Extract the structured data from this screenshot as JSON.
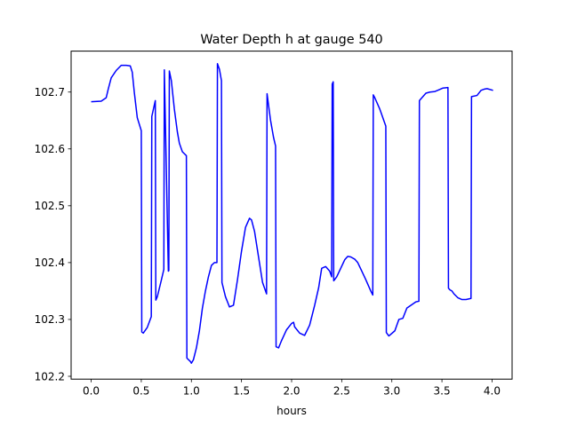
{
  "chart_data": {
    "type": "line",
    "title": "Water Depth h at gauge 540",
    "xlabel": "hours",
    "ylabel": "",
    "xlim": [
      -0.2,
      4.2
    ],
    "ylim": [
      102.195,
      102.772
    ],
    "xticks": [
      0.0,
      0.5,
      1.0,
      1.5,
      2.0,
      2.5,
      3.0,
      3.5,
      4.0
    ],
    "xtick_labels": [
      "0.0",
      "0.5",
      "1.0",
      "1.5",
      "2.0",
      "2.5",
      "3.0",
      "3.5",
      "4.0"
    ],
    "yticks": [
      102.2,
      102.3,
      102.4,
      102.5,
      102.6,
      102.7
    ],
    "ytick_labels": [
      "102.2",
      "102.3",
      "102.4",
      "102.5",
      "102.6",
      "102.7"
    ],
    "grid": false,
    "series": [
      {
        "color": "#0000ff",
        "x": [
          0.0,
          0.1,
          0.15,
          0.17,
          0.2,
          0.25,
          0.3,
          0.35,
          0.39,
          0.41,
          0.43,
          0.46,
          0.5,
          0.505,
          0.52,
          0.56,
          0.6,
          0.605,
          0.64,
          0.645,
          0.66,
          0.7,
          0.725,
          0.73,
          0.77,
          0.775,
          0.78,
          0.8,
          0.83,
          0.86,
          0.88,
          0.91,
          0.95,
          0.955,
          0.99,
          1.0,
          1.02,
          1.05,
          1.08,
          1.11,
          1.14,
          1.17,
          1.2,
          1.23,
          1.255,
          1.26,
          1.28,
          1.3,
          1.305,
          1.34,
          1.38,
          1.42,
          1.46,
          1.5,
          1.54,
          1.58,
          1.6,
          1.63,
          1.67,
          1.71,
          1.75,
          1.755,
          1.79,
          1.82,
          1.84,
          1.845,
          1.87,
          1.9,
          1.95,
          2.0,
          2.02,
          2.03,
          2.08,
          2.13,
          2.18,
          2.23,
          2.27,
          2.3,
          2.34,
          2.38,
          2.4,
          2.405,
          2.415,
          2.42,
          2.45,
          2.49,
          2.53,
          2.56,
          2.59,
          2.63,
          2.66,
          2.7,
          2.74,
          2.79,
          2.81,
          2.815,
          2.83,
          2.88,
          2.93,
          2.94,
          2.945,
          2.97,
          3.03,
          3.07,
          3.11,
          3.15,
          3.2,
          3.24,
          3.27,
          3.275,
          3.3,
          3.34,
          3.38,
          3.43,
          3.47,
          3.51,
          3.56,
          3.565,
          3.58,
          3.6,
          3.62,
          3.66,
          3.7,
          3.74,
          3.79,
          3.795,
          3.85,
          3.89,
          3.92,
          3.95,
          4.01
        ],
        "y": [
          102.683,
          102.684,
          102.69,
          102.705,
          102.725,
          102.738,
          102.747,
          102.747,
          102.746,
          102.735,
          102.7,
          102.655,
          102.632,
          102.278,
          102.276,
          102.286,
          102.305,
          102.657,
          102.685,
          102.334,
          102.34,
          102.369,
          102.388,
          102.739,
          102.385,
          102.386,
          102.737,
          102.72,
          102.67,
          102.63,
          102.61,
          102.595,
          102.588,
          102.232,
          102.226,
          102.223,
          102.229,
          102.25,
          102.28,
          102.32,
          102.35,
          102.375,
          102.395,
          102.4,
          102.4,
          102.75,
          102.74,
          102.72,
          102.365,
          102.34,
          102.322,
          102.325,
          102.37,
          102.42,
          102.462,
          102.478,
          102.475,
          102.455,
          102.41,
          102.365,
          102.345,
          102.697,
          102.65,
          102.62,
          102.605,
          102.252,
          102.25,
          102.263,
          102.282,
          102.293,
          102.295,
          102.287,
          102.276,
          102.272,
          102.29,
          102.325,
          102.356,
          102.39,
          102.393,
          102.385,
          102.375,
          102.714,
          102.718,
          102.368,
          102.375,
          102.39,
          102.405,
          102.411,
          102.41,
          102.406,
          102.4,
          102.385,
          102.37,
          102.35,
          102.343,
          102.695,
          102.69,
          102.67,
          102.645,
          102.64,
          102.277,
          102.271,
          102.28,
          102.3,
          102.302,
          102.32,
          102.326,
          102.331,
          102.332,
          102.685,
          102.69,
          102.698,
          102.7,
          102.701,
          102.704,
          102.707,
          102.708,
          102.355,
          102.352,
          102.35,
          102.345,
          102.338,
          102.335,
          102.335,
          102.337,
          102.692,
          102.694,
          102.703,
          102.705,
          102.706,
          102.703
        ]
      }
    ]
  }
}
